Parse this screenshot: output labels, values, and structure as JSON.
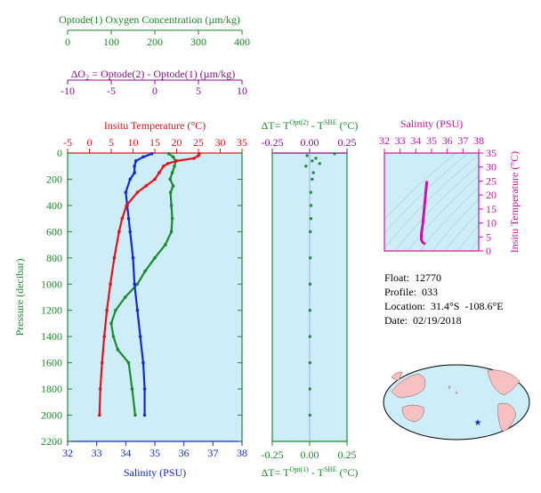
{
  "colors": {
    "green": "#1a8a2a",
    "red": "#e8101a",
    "blue": "#1428d8",
    "purple": "#8a108a",
    "magenta": "#d010a8",
    "panel_bg": "#cdeef8",
    "land": "#f7c1c1"
  },
  "top_axes": {
    "oxygen": {
      "title": "Optode(1) Oxygen Concentration (µm/kg)",
      "ticks": [
        "0",
        "100",
        "200",
        "300",
        "400"
      ]
    },
    "delta_o2": {
      "title": "ΔO₂ = Optode(2) - Optode(1)   (µm/kg)",
      "ticks": [
        "-10",
        "-5",
        "0",
        "5",
        "10"
      ]
    }
  },
  "main_panel": {
    "temp_title": "Insitu Temperature (°C)",
    "temp_ticks": [
      "-5",
      "0",
      "5",
      "10",
      "15",
      "20",
      "25",
      "30",
      "35"
    ],
    "salinity_title": "Salinity (PSU)",
    "salinity_ticks": [
      "32",
      "33",
      "34",
      "35",
      "36",
      "37",
      "38"
    ],
    "pressure_title": "Pressure (decibar)",
    "pressure_ticks": [
      "0",
      "200",
      "400",
      "600",
      "800",
      "1000",
      "1200",
      "1400",
      "1600",
      "1800",
      "2000",
      "2200"
    ]
  },
  "dt_panel": {
    "top_title": "ΔT= T",
    "top_sup1": "Opt(2)",
    "top_mid": " - T",
    "top_sup2": "SBE",
    "top_end": " (°C)",
    "bottom_title": "ΔT= T",
    "bottom_sup1": "Opt(1)",
    "bottom_mid": " - T",
    "bottom_sup2": "SBE",
    "bottom_end": " (°C)",
    "ticks": [
      "-0.25",
      "0.00",
      "0.25"
    ]
  },
  "ts_panel": {
    "salinity_title": "Salinity (PSU)",
    "salinity_ticks": [
      "32",
      "33",
      "34",
      "35",
      "36",
      "37",
      "38"
    ],
    "temp_title": "Insitu Temperature (°C)",
    "temp_ticks": [
      "0",
      "5",
      "10",
      "15",
      "20",
      "25",
      "30",
      "35"
    ]
  },
  "float_info": {
    "float": "Float:  12770",
    "profile": "Profile:  033",
    "location": "Location:  31.4°S  -108.6°E",
    "date": "Date:  02/19/2018"
  },
  "chart_data": [
    {
      "type": "line",
      "name": "Insitu Temperature",
      "x_unit": "°C",
      "pressure": [
        5,
        20,
        40,
        60,
        80,
        100,
        150,
        200,
        250,
        300,
        400,
        500,
        600,
        800,
        1000,
        1200,
        1400,
        1600,
        1800,
        2000
      ],
      "values": [
        25.2,
        25.0,
        24.0,
        20.0,
        18.0,
        17.0,
        16.0,
        15.0,
        13.0,
        11.0,
        8.5,
        7.5,
        6.8,
        5.7,
        4.8,
        4.0,
        3.4,
        2.9,
        2.5,
        2.3
      ],
      "xlim": [
        -5,
        35
      ]
    },
    {
      "type": "line",
      "name": "Salinity",
      "x_unit": "PSU",
      "pressure": [
        5,
        30,
        60,
        100,
        150,
        200,
        300,
        400,
        500,
        600,
        800,
        1000,
        1200,
        1400,
        1600,
        1800,
        2000
      ],
      "values": [
        34.9,
        34.6,
        34.35,
        34.3,
        34.3,
        34.15,
        34.0,
        34.05,
        34.1,
        34.15,
        34.25,
        34.3,
        34.4,
        34.5,
        34.6,
        34.65,
        34.65
      ],
      "xlim": [
        32,
        38
      ]
    },
    {
      "type": "line",
      "name": "Optode(1) Oxygen Concentration",
      "x_unit": "µm/kg",
      "pressure": [
        5,
        30,
        60,
        100,
        150,
        200,
        250,
        300,
        400,
        500,
        600,
        700,
        800,
        900,
        1000,
        1100,
        1200,
        1300,
        1400,
        1500,
        1600,
        1800,
        2000
      ],
      "values": [
        232,
        242,
        248,
        245,
        240,
        235,
        242,
        236,
        238,
        240,
        238,
        224,
        200,
        178,
        160,
        132,
        110,
        100,
        105,
        115,
        140,
        148,
        155
      ],
      "xlim": [
        0,
        400
      ]
    },
    {
      "type": "scatter",
      "name": "ΔT Opt(2) - SBE",
      "x_unit": "°C",
      "pressure": [
        5,
        20,
        40,
        60,
        80,
        100,
        150,
        200,
        300,
        400,
        500,
        600,
        800,
        1000,
        1200,
        1400,
        1600,
        1800,
        2000
      ],
      "values": [
        0.2,
        -0.02,
        0.05,
        0.02,
        0.08,
        -0.03,
        0.03,
        0.02,
        0.01,
        0.01,
        0.01,
        0.005,
        0.005,
        0.003,
        0.002,
        0.002,
        0.002,
        0.002,
        0.002
      ],
      "xlim": [
        -0.3,
        0.3
      ]
    },
    {
      "type": "line",
      "name": "T-S diagram",
      "x_unit": "PSU",
      "y_unit": "°C",
      "x": [
        34.7,
        34.65,
        34.6,
        34.55,
        34.5,
        34.45,
        34.4,
        34.35,
        34.35,
        34.45,
        34.6
      ],
      "y": [
        25.0,
        22.0,
        19.0,
        16.0,
        13.0,
        10.0,
        8.0,
        6.0,
        4.0,
        3.0,
        2.5
      ],
      "xlim": [
        32,
        38
      ],
      "ylim": [
        0,
        35
      ]
    }
  ]
}
